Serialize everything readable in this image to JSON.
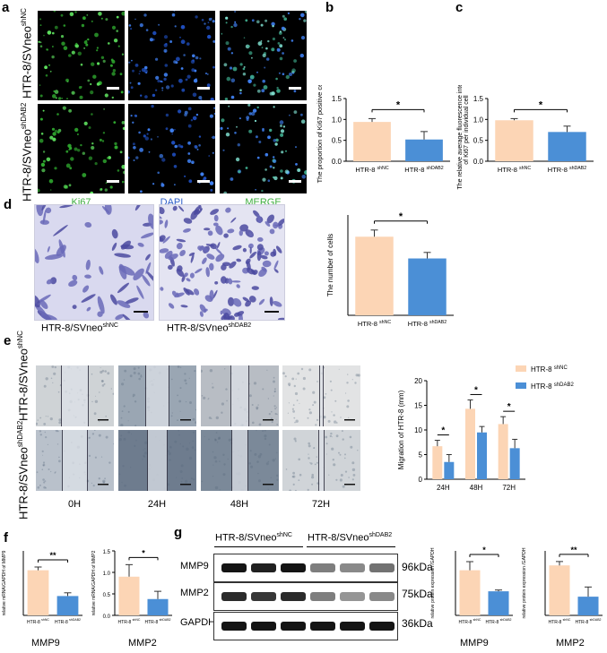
{
  "panel_letters": {
    "a": "a",
    "b": "b",
    "c": "c",
    "d": "d",
    "e": "e",
    "f": "f",
    "g": "g"
  },
  "panel_a": {
    "row_labels": [
      {
        "base": "HTR-8/SVneo",
        "sup": "shNC"
      },
      {
        "base": "HTR-8/SVneo",
        "sup": "shDAB2"
      }
    ],
    "channels": [
      {
        "label": "Ki67",
        "color": "#3fae3f"
      },
      {
        "label": "DAPI",
        "color": "#2e5fc9"
      },
      {
        "label": "MERGE",
        "color": "#3fae3f"
      }
    ]
  },
  "panel_d": {
    "captions": [
      {
        "base": "HTR-8/SVneo",
        "sup": "shNC"
      },
      {
        "base": "HTR-8/SVneo",
        "sup": "shDAB2"
      }
    ]
  },
  "panel_e": {
    "row_labels": [
      {
        "base": "HTR-8/SVneo",
        "sup": "shNC"
      },
      {
        "base": "HTR-8/SVneo",
        "sup": "shDAB2"
      }
    ],
    "time_labels": [
      "0H",
      "24H",
      "48H",
      "72H"
    ]
  },
  "panel_f": {
    "captions": [
      "MMP9",
      "MMP2"
    ]
  },
  "panel_g": {
    "group_labels": [
      {
        "base": "HTR-8/SVneo",
        "sup": "shNC"
      },
      {
        "base": "HTR-8/SVneo",
        "sup": "shDAB2"
      }
    ],
    "protein_labels": [
      "MMP9",
      "MMP2",
      "GAPDH"
    ],
    "kda_labels": [
      "96kDa",
      "75kDa",
      "36kDa"
    ],
    "captions": [
      "MMP9",
      "MMP2"
    ]
  },
  "colors": {
    "shNC": "#fcd5b5",
    "shDAB2": "#4b8fd6"
  },
  "chart_data": [
    {
      "id": "b",
      "type": "bar",
      "categories": [
        {
          "base": "HTR-8",
          "sup": "shNC"
        },
        {
          "base": "HTR-8",
          "sup": "shDAB2"
        }
      ],
      "values": [
        0.94,
        0.52
      ],
      "errors": [
        0.08,
        0.19
      ],
      "ylabel": "The proportion of Ki67 positive cells",
      "ylim": [
        0,
        1.5
      ],
      "ticks": [
        "0.0",
        "0.5",
        "1.0",
        "1.5"
      ],
      "tickvals": [
        0,
        0.5,
        1.0,
        1.5
      ],
      "sig": "*"
    },
    {
      "id": "c",
      "type": "bar",
      "categories": [
        {
          "base": "HTR-8",
          "sup": "shNC"
        },
        {
          "base": "HTR-8",
          "sup": "shDAB2"
        }
      ],
      "values": [
        0.98,
        0.7
      ],
      "errors": [
        0.04,
        0.14
      ],
      "ylabel": "The relative average fluorescence intensity of Ki67 per individual cell",
      "ylabel_lines": [
        "The relative average fluorescence intensity",
        "of Ki67 per individual cell"
      ],
      "ylim": [
        0,
        1.5
      ],
      "ticks": [
        "0.0",
        "0.5",
        "1.0",
        "1.5"
      ],
      "tickvals": [
        0,
        0.5,
        1.0,
        1.5
      ],
      "sig": "*"
    },
    {
      "id": "d",
      "type": "bar",
      "categories": [
        {
          "base": "HTR-8",
          "sup": "shNC"
        },
        {
          "base": "HTR-8",
          "sup": "shDAB2"
        }
      ],
      "values": [
        235,
        170
      ],
      "errors": [
        20,
        18
      ],
      "ylabel": "The number of cells",
      "ylim": [
        0,
        300
      ],
      "ticks": [],
      "tickvals": [],
      "sig": "*"
    },
    {
      "id": "e",
      "type": "bar",
      "categories": [
        "24H",
        "48H",
        "72H"
      ],
      "series": [
        {
          "name": "HTR-8 shNC",
          "base": "HTR-8",
          "sup": "shNC",
          "values": [
            6.7,
            14.3,
            11.2
          ],
          "errors": [
            1.2,
            1.8,
            1.5
          ]
        },
        {
          "name": "HTR-8 shDAB2",
          "base": "HTR-8",
          "sup": "shDAB2",
          "values": [
            3.5,
            9.5,
            6.3
          ],
          "errors": [
            1.5,
            1.2,
            1.8
          ]
        }
      ],
      "ylabel": "Migration of HTR-8 (mm)",
      "ylim": [
        0,
        20
      ],
      "ticks": [
        "0",
        "5",
        "10",
        "15",
        "20"
      ],
      "tickvals": [
        0,
        5,
        10,
        15,
        20
      ],
      "sig": [
        "*",
        "*",
        "*"
      ],
      "legend": "top-right"
    },
    {
      "id": "f1",
      "type": "bar",
      "categories": [
        {
          "base": "HTR-8",
          "sup": "shNC"
        },
        {
          "base": "HTR-8",
          "sup": "shDAB2"
        }
      ],
      "values": [
        2.8,
        1.2
      ],
      "errors": [
        0.2,
        0.2
      ],
      "ylabel": "relative mRNA/GAPDH of MMP9",
      "ylim": [
        0,
        4
      ],
      "ticks": [],
      "tickvals": [],
      "sig": "**"
    },
    {
      "id": "f2",
      "type": "bar",
      "categories": [
        {
          "base": "HTR-8",
          "sup": "shNC"
        },
        {
          "base": "HTR-8",
          "sup": "shDAB2"
        }
      ],
      "values": [
        0.9,
        0.38
      ],
      "errors": [
        0.28,
        0.18
      ],
      "ylabel": "relative mRNA/GAPDH of MMP2",
      "ylim": [
        0,
        1.5
      ],
      "ticks": [
        "0.0",
        "0.5",
        "1.0",
        "1.5"
      ],
      "tickvals": [
        0,
        0.5,
        1.0,
        1.5
      ],
      "sig": "*"
    },
    {
      "id": "g1",
      "type": "bar",
      "categories": [
        {
          "base": "HTR-8",
          "sup": "shNC"
        },
        {
          "base": "HTR-8",
          "sup": "shDAB2"
        }
      ],
      "values": [
        1.05,
        0.56
      ],
      "errors": [
        0.2,
        0.03
      ],
      "ylabel": "relative protein expression /GAPDH",
      "ylim": [
        0,
        1.5
      ],
      "ticks": [],
      "tickvals": [],
      "sig": "*"
    },
    {
      "id": "g2",
      "type": "bar",
      "categories": [
        {
          "base": "HTR-8",
          "sup": "shNC"
        },
        {
          "base": "HTR-8",
          "sup": "shDAB2"
        }
      ],
      "values": [
        1.55,
        0.58
      ],
      "errors": [
        0.12,
        0.3
      ],
      "ylabel": "relative protein expression /GAPDH",
      "ylim": [
        0,
        2
      ],
      "ticks": [],
      "tickvals": [],
      "sig": "**"
    }
  ]
}
